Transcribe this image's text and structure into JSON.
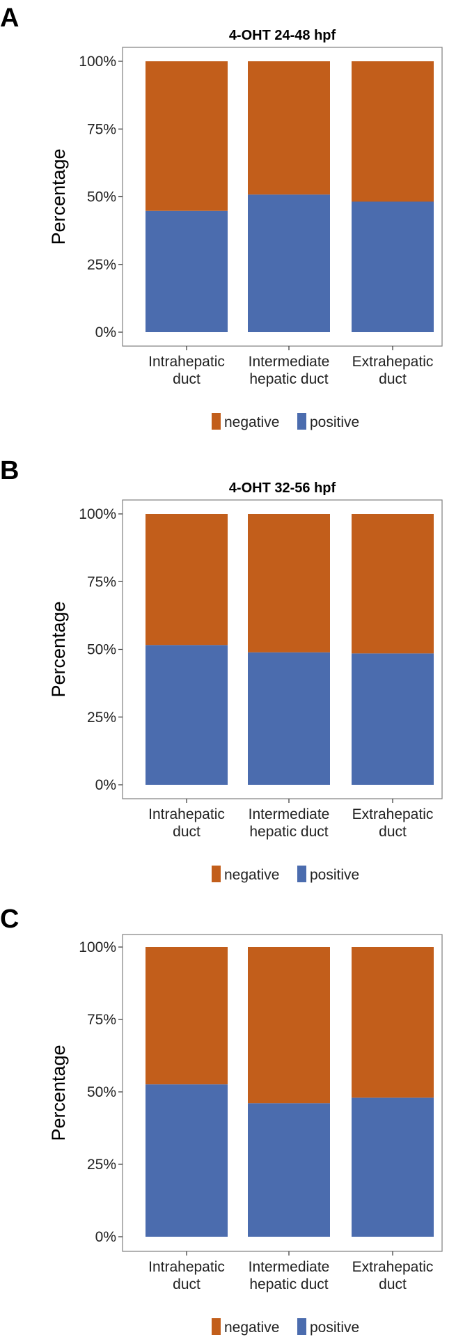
{
  "chart_data": [
    {
      "panel": "A",
      "type": "bar",
      "stacked": true,
      "title": "4-OHT 24-48 hpf",
      "xlabel": "",
      "ylabel": "Percentage",
      "ylim": [
        0,
        100
      ],
      "yticks": [
        "0%",
        "25%",
        "50%",
        "75%",
        "100%"
      ],
      "categories": [
        [
          "Intrahepatic",
          "duct"
        ],
        [
          "Intermediate",
          "hepatic duct"
        ],
        [
          "Extrahepatic",
          "duct"
        ]
      ],
      "series": [
        {
          "name": "positive",
          "color": "#4b6cae",
          "values": [
            44.8,
            50.8,
            48.2
          ]
        },
        {
          "name": "negative",
          "color": "#c25e1b",
          "values": [
            55.2,
            49.2,
            51.8
          ]
        }
      ],
      "legend": [
        "negative",
        "positive"
      ],
      "legend_position": "bottom"
    },
    {
      "panel": "B",
      "type": "bar",
      "stacked": true,
      "title": "4-OHT 32-56 hpf",
      "xlabel": "",
      "ylabel": "Percentage",
      "ylim": [
        0,
        100
      ],
      "yticks": [
        "0%",
        "25%",
        "50%",
        "75%",
        "100%"
      ],
      "categories": [
        [
          "Intrahepatic",
          "duct"
        ],
        [
          "Intermediate",
          "hepatic duct"
        ],
        [
          "Extrahepatic",
          "duct"
        ]
      ],
      "series": [
        {
          "name": "positive",
          "color": "#4b6cae",
          "values": [
            51.6,
            48.9,
            48.5
          ]
        },
        {
          "name": "negative",
          "color": "#c25e1b",
          "values": [
            48.4,
            51.1,
            51.5
          ]
        }
      ],
      "legend": [
        "negative",
        "positive"
      ],
      "legend_position": "bottom"
    },
    {
      "panel": "C",
      "type": "bar",
      "stacked": true,
      "title": "",
      "xlabel": "",
      "ylabel": "Percentage",
      "ylim": [
        0,
        100
      ],
      "yticks": [
        "0%",
        "25%",
        "50%",
        "75%",
        "100%"
      ],
      "categories": [
        [
          "Intrahepatic",
          "duct"
        ],
        [
          "Intermediate",
          "hepatic duct"
        ],
        [
          "Extrahepatic",
          "duct"
        ]
      ],
      "series": [
        {
          "name": "positive",
          "color": "#4b6cae",
          "values": [
            52.6,
            46.1,
            48.0
          ]
        },
        {
          "name": "negative",
          "color": "#c25e1b",
          "values": [
            47.4,
            53.9,
            52.0
          ]
        }
      ],
      "legend": [
        "negative",
        "positive"
      ],
      "legend_position": "bottom"
    }
  ]
}
